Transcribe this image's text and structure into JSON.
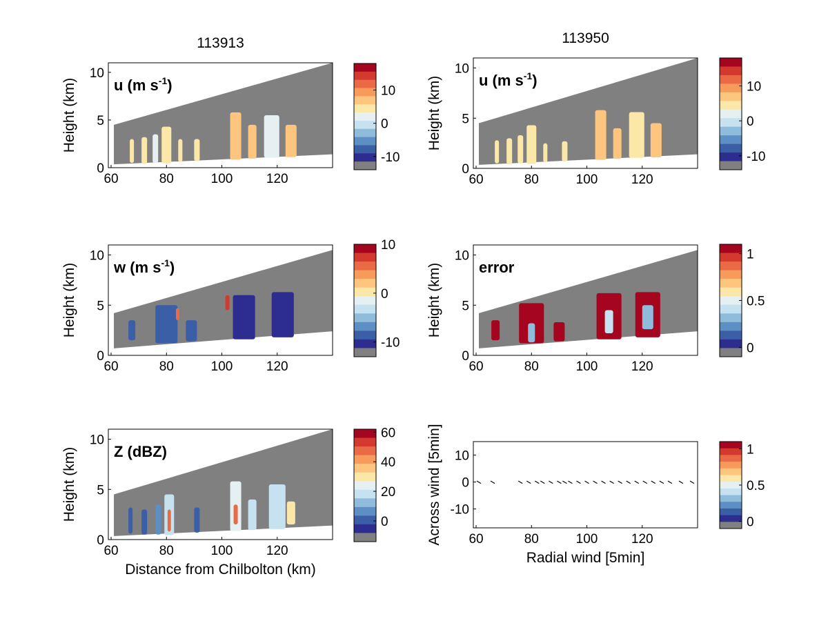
{
  "chart_data": [
    {
      "type": "heatmap",
      "title": "113913",
      "panel_label": "u (m s",
      "panel_label_sup": "-1",
      "panel_label_end": ")",
      "ylabel": "Height (km)",
      "xlabel": "",
      "xlim": [
        59,
        140
      ],
      "ylim": [
        0,
        11
      ],
      "xticks": [
        60,
        80,
        100,
        120
      ],
      "yticks": [
        0,
        5,
        10
      ],
      "cone": {
        "top_start": 4.5,
        "top_end": 11,
        "bottom_start": 0.35,
        "bottom_end": 1.4
      },
      "colorbar": {
        "ticks": [
          10,
          0,
          -10
        ],
        "range": [
          -14,
          18
        ]
      },
      "blobs": [
        {
          "x": 67.5,
          "y0": 0.5,
          "y1": 3,
          "w": 1.5,
          "v": 0.55
        },
        {
          "x": 72,
          "y0": 0.4,
          "y1": 3.2,
          "w": 2,
          "v": 0.55
        },
        {
          "x": 76,
          "y0": 0.5,
          "y1": 3.5,
          "w": 2,
          "v": 0.45
        },
        {
          "x": 80,
          "y0": 0.45,
          "y1": 4.3,
          "w": 3.5,
          "v": 0.5
        },
        {
          "x": 85,
          "y0": 0.6,
          "y1": 3,
          "w": 1.5,
          "v": 0.55
        },
        {
          "x": 91,
          "y0": 0.7,
          "y1": 3,
          "w": 2,
          "v": 0.55
        },
        {
          "x": 105,
          "y0": 0.85,
          "y1": 5.8,
          "w": 4,
          "v": 0.6
        },
        {
          "x": 111,
          "y0": 0.95,
          "y1": 4.5,
          "w": 3,
          "v": 0.6
        },
        {
          "x": 118,
          "y0": 1.05,
          "y1": 5.5,
          "w": 5.5,
          "v": 0.45
        },
        {
          "x": 125,
          "y0": 1.1,
          "y1": 4.5,
          "w": 4,
          "v": 0.6
        }
      ]
    },
    {
      "type": "heatmap",
      "title": "113950",
      "panel_label": "u (m s",
      "panel_label_sup": "-1",
      "panel_label_end": ")",
      "ylabel": "Height (km)",
      "xlabel": "",
      "xlim": [
        59,
        140
      ],
      "ylim": [
        0,
        11
      ],
      "xticks": [
        60,
        80,
        100,
        120
      ],
      "yticks": [
        0,
        5,
        10
      ],
      "cone": {
        "top_start": 4.5,
        "top_end": 11,
        "bottom_start": 0.35,
        "bottom_end": 1.4
      },
      "colorbar": {
        "ticks": [
          10,
          0,
          -10
        ],
        "range": [
          -14,
          18
        ]
      },
      "blobs": [
        {
          "x": 67.5,
          "y0": 0.5,
          "y1": 2.8,
          "w": 1.5,
          "v": 0.55
        },
        {
          "x": 72,
          "y0": 0.4,
          "y1": 3.0,
          "w": 2,
          "v": 0.55
        },
        {
          "x": 76,
          "y0": 0.5,
          "y1": 3.3,
          "w": 2,
          "v": 0.5
        },
        {
          "x": 80,
          "y0": 0.45,
          "y1": 4.3,
          "w": 3.5,
          "v": 0.55
        },
        {
          "x": 85,
          "y0": 0.6,
          "y1": 2.5,
          "w": 1.5,
          "v": 0.55
        },
        {
          "x": 92,
          "y0": 0.7,
          "y1": 2.7,
          "w": 2,
          "v": 0.55
        },
        {
          "x": 105,
          "y0": 0.85,
          "y1": 5.8,
          "w": 4,
          "v": 0.6
        },
        {
          "x": 111,
          "y0": 0.95,
          "y1": 4.0,
          "w": 3,
          "v": 0.6
        },
        {
          "x": 118,
          "y0": 1.05,
          "y1": 5.6,
          "w": 5.5,
          "v": 0.5
        },
        {
          "x": 125,
          "y0": 1.1,
          "y1": 4.5,
          "w": 4,
          "v": 0.6
        }
      ]
    },
    {
      "type": "heatmap",
      "title": "",
      "panel_label": "w (m s",
      "panel_label_sup": "-1",
      "panel_label_end": ")",
      "ylabel": "Height (km)",
      "xlabel": "",
      "xlim": [
        59,
        140
      ],
      "ylim": [
        0,
        11
      ],
      "xticks": [
        60,
        80,
        100,
        120
      ],
      "yticks": [
        0,
        5,
        10
      ],
      "cone": {
        "top_start": 4.2,
        "top_end": 10.5,
        "bottom_start": 0.7,
        "bottom_end": 2.4
      },
      "colorbar": {
        "ticks": [
          10,
          0,
          -10
        ],
        "range": [
          -13,
          10
        ]
      },
      "blobs": [
        {
          "x": 67.5,
          "y0": 1.5,
          "y1": 3.5,
          "w": 2.5,
          "v": 0.15
        },
        {
          "x": 80,
          "y0": 1.2,
          "y1": 5.0,
          "w": 8,
          "v": 0.1
        },
        {
          "x": 89,
          "y0": 1.4,
          "y1": 3.5,
          "w": 4,
          "v": 0.12
        },
        {
          "x": 108,
          "y0": 1.6,
          "y1": 6.0,
          "w": 8,
          "v": 0.05
        },
        {
          "x": 122,
          "y0": 1.8,
          "y1": 6.3,
          "w": 8,
          "v": 0.05
        },
        {
          "x": 84,
          "y0": 3.5,
          "y1": 4.7,
          "w": 1.2,
          "v": 0.8
        },
        {
          "x": 102,
          "y0": 4.5,
          "y1": 6.0,
          "w": 1.5,
          "v": 0.9
        }
      ]
    },
    {
      "type": "heatmap",
      "title": "",
      "panel_label": "error",
      "panel_label_sup": "",
      "panel_label_end": "",
      "ylabel": "Height (km)",
      "xlabel": "",
      "xlim": [
        59,
        140
      ],
      "ylim": [
        0,
        11
      ],
      "xticks": [
        60,
        80,
        100,
        120
      ],
      "yticks": [
        0,
        5,
        10
      ],
      "cone": {
        "top_start": 4.2,
        "top_end": 10.5,
        "bottom_start": 0.7,
        "bottom_end": 2.4
      },
      "colorbar": {
        "ticks": [
          1,
          0.5,
          0
        ],
        "range": [
          -0.1,
          1.1
        ]
      },
      "blobs": [
        {
          "x": 67,
          "y0": 1.5,
          "y1": 3.5,
          "w": 3,
          "v": 0.95
        },
        {
          "x": 80,
          "y0": 1.2,
          "y1": 5.2,
          "w": 9,
          "v": 0.95
        },
        {
          "x": 80,
          "y0": 1.3,
          "y1": 3.2,
          "w": 2.5,
          "v": 0.3
        },
        {
          "x": 90,
          "y0": 1.4,
          "y1": 3.3,
          "w": 4,
          "v": 0.95
        },
        {
          "x": 108,
          "y0": 1.6,
          "y1": 6.2,
          "w": 9,
          "v": 0.95
        },
        {
          "x": 108,
          "y0": 2.2,
          "y1": 4.5,
          "w": 3,
          "v": 0.4
        },
        {
          "x": 122,
          "y0": 1.8,
          "y1": 6.3,
          "w": 9,
          "v": 0.95
        },
        {
          "x": 122,
          "y0": 2.6,
          "y1": 5.0,
          "w": 4,
          "v": 0.25
        }
      ]
    },
    {
      "type": "heatmap",
      "title": "",
      "panel_label": "Z (dBZ)",
      "panel_label_sup": "",
      "panel_label_end": "",
      "ylabel": "Height (km)",
      "xlabel": "Distance from Chilbolton (km)",
      "xlim": [
        59,
        140
      ],
      "ylim": [
        0,
        11
      ],
      "xticks": [
        60,
        80,
        100,
        120
      ],
      "yticks": [
        0,
        5,
        10
      ],
      "cone": {
        "top_start": 4.5,
        "top_end": 11,
        "bottom_start": 0.35,
        "bottom_end": 1.4
      },
      "colorbar": {
        "ticks": [
          60,
          40,
          20,
          0
        ],
        "range": [
          -14,
          62
        ]
      },
      "blobs": [
        {
          "x": 67,
          "y0": 0.6,
          "y1": 3.2,
          "w": 1.5,
          "v": 0.12
        },
        {
          "x": 72,
          "y0": 0.5,
          "y1": 3.0,
          "w": 2,
          "v": 0.15
        },
        {
          "x": 77,
          "y0": 0.5,
          "y1": 3.5,
          "w": 2,
          "v": 0.2
        },
        {
          "x": 81,
          "y0": 0.45,
          "y1": 4.5,
          "w": 3.5,
          "v": 0.35
        },
        {
          "x": 81,
          "y0": 0.8,
          "y1": 3.0,
          "w": 1.2,
          "v": 0.75
        },
        {
          "x": 91,
          "y0": 0.7,
          "y1": 3.2,
          "w": 2,
          "v": 0.15
        },
        {
          "x": 105,
          "y0": 0.85,
          "y1": 5.8,
          "w": 4,
          "v": 0.45
        },
        {
          "x": 105,
          "y0": 1.5,
          "y1": 3.5,
          "w": 1.5,
          "v": 0.75
        },
        {
          "x": 111,
          "y0": 0.95,
          "y1": 4.0,
          "w": 3,
          "v": 0.4
        },
        {
          "x": 120,
          "y0": 1.05,
          "y1": 5.5,
          "w": 6,
          "v": 0.4
        },
        {
          "x": 125,
          "y0": 1.5,
          "y1": 3.8,
          "w": 3,
          "v": 0.55
        }
      ]
    },
    {
      "type": "scatter",
      "title": "",
      "panel_label": "",
      "ylabel": "Across wind [5min]",
      "xlabel": "Radial wind [5min]",
      "xlim": [
        59,
        140
      ],
      "ylim": [
        -17,
        15
      ],
      "xticks": [
        60,
        80,
        100,
        120
      ],
      "yticks": [
        10,
        0,
        -10
      ],
      "colorbar": {
        "ticks": [
          1,
          0.5,
          0
        ],
        "range": [
          -0.1,
          1.1
        ]
      },
      "arrows_x": [
        61,
        66,
        76,
        79,
        82,
        84,
        87,
        90,
        92,
        94,
        97,
        100,
        103,
        106,
        109,
        112,
        115,
        118,
        121,
        124,
        127,
        130,
        134,
        138
      ]
    }
  ],
  "colors": {
    "background": "#808080",
    "scale": [
      "#2c2d8f",
      "#3a5fa6",
      "#5d8fc4",
      "#8fbcdb",
      "#c6e1ef",
      "#e6f0f3",
      "#fbe7a8",
      "#fdc57e",
      "#f79b5c",
      "#e96a45",
      "#d23a2e",
      "#a5051f"
    ]
  }
}
